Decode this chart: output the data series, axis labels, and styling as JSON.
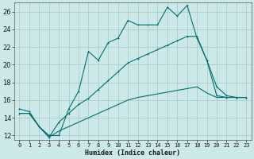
{
  "xlabel": "Humidex (Indice chaleur)",
  "background_color": "#cce8e8",
  "grid_color": "#aacccc",
  "line_color": "#007070",
  "xlim": [
    -0.5,
    23.5
  ],
  "ylim": [
    11.5,
    27
  ],
  "xticks": [
    0,
    1,
    2,
    3,
    4,
    5,
    6,
    7,
    8,
    9,
    10,
    11,
    12,
    13,
    14,
    15,
    16,
    17,
    18,
    19,
    20,
    21,
    22,
    23
  ],
  "yticks": [
    12,
    14,
    16,
    18,
    20,
    22,
    24,
    26
  ],
  "line1_x": [
    0,
    1,
    2,
    3,
    4,
    5,
    6,
    7,
    8,
    9,
    10,
    11,
    12,
    13,
    14,
    15,
    16,
    17,
    18,
    19,
    20,
    21,
    22,
    23
  ],
  "line1_y": [
    15,
    14.7,
    13.0,
    12.0,
    12.0,
    15.0,
    17.0,
    21.5,
    20.5,
    22.5,
    23.0,
    25.0,
    24.5,
    24.5,
    24.5,
    26.5,
    25.5,
    26.7,
    23.0,
    20.5,
    17.5,
    16.5,
    16.3,
    16.3
  ],
  "line2_x": [
    0,
    1,
    2,
    3,
    4,
    5,
    6,
    7,
    8,
    9,
    10,
    11,
    12,
    13,
    14,
    15,
    16,
    17,
    18,
    19,
    20,
    21,
    22,
    23
  ],
  "line2_y": [
    14.5,
    14.5,
    13.0,
    11.8,
    13.5,
    14.5,
    15.5,
    16.2,
    17.2,
    18.2,
    19.2,
    20.2,
    20.7,
    21.2,
    21.7,
    22.2,
    22.7,
    23.2,
    23.2,
    20.5,
    16.5,
    16.3,
    16.3,
    16.3
  ],
  "line3_x": [
    0,
    1,
    2,
    3,
    4,
    5,
    6,
    7,
    8,
    9,
    10,
    11,
    12,
    13,
    14,
    15,
    16,
    17,
    18,
    19,
    20,
    21,
    22,
    23
  ],
  "line3_y": [
    14.5,
    14.5,
    13.0,
    11.8,
    12.5,
    13.0,
    13.5,
    14.0,
    14.5,
    15.0,
    15.5,
    16.0,
    16.3,
    16.5,
    16.7,
    16.9,
    17.1,
    17.3,
    17.5,
    16.8,
    16.3,
    16.3,
    16.3,
    16.3
  ]
}
